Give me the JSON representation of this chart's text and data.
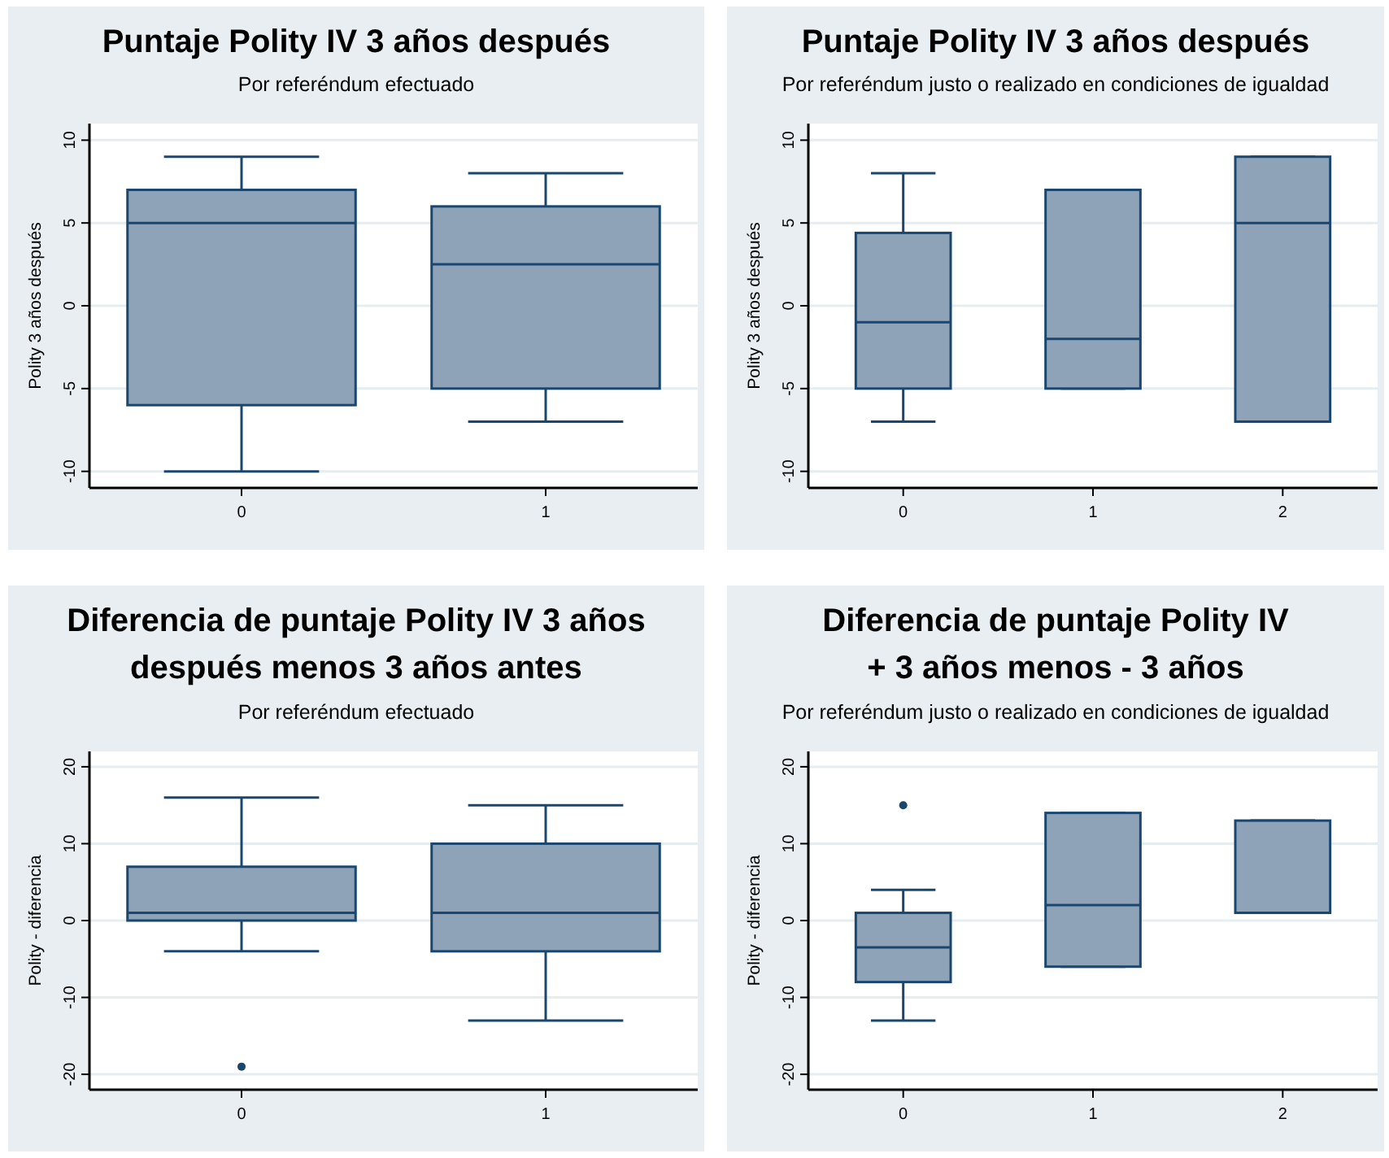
{
  "chart_data": [
    {
      "type": "box",
      "title": "Puntaje Polity IV 3 años después",
      "subtitle": "Por referéndum efectuado",
      "ylabel": "Polity 3 años después",
      "categories": [
        "0",
        "1"
      ],
      "ylim": [
        -11,
        11
      ],
      "yticks": [
        -10,
        -5,
        0,
        5,
        10
      ],
      "grid": "y",
      "series": [
        {
          "color": "#8ea3b8",
          "boxes": [
            {
              "low": -10,
              "q1": -6,
              "median": 5,
              "q3": 7,
              "high": 9
            },
            {
              "low": -7,
              "q1": -5,
              "median": 2.5,
              "q3": 6,
              "high": 8
            }
          ]
        }
      ]
    },
    {
      "type": "box",
      "title": "Puntaje Polity IV 3 años después",
      "subtitle": "Por referéndum justo o realizado en condiciones de igualdad",
      "ylabel": "Polity 3 años después",
      "categories": [
        "0",
        "1",
        "2"
      ],
      "ylim": [
        -11,
        11
      ],
      "yticks": [
        -10,
        -5,
        0,
        5,
        10
      ],
      "grid": "y",
      "series": [
        {
          "color": "#8ea3b8",
          "boxes": [
            {
              "low": -7,
              "q1": -5,
              "median": -1,
              "q3": 4.4,
              "high": 8
            },
            {
              "low": -5,
              "q1": -5,
              "median": -2,
              "q3": 7,
              "high": 7
            },
            {
              "low": -7,
              "q1": -7,
              "median": 5,
              "q3": 9,
              "high": 9
            }
          ]
        }
      ]
    },
    {
      "type": "box",
      "title": "Diferencia de puntaje Polity IV 3 años\ndespués menos 3 años antes",
      "subtitle": "Por referéndum efectuado",
      "ylabel": "Polity - diferencia",
      "categories": [
        "0",
        "1"
      ],
      "ylim": [
        -22,
        22
      ],
      "yticks": [
        -20,
        -10,
        0,
        10,
        20
      ],
      "grid": "y",
      "series": [
        {
          "color": "#8ea3b8",
          "boxes": [
            {
              "low": -4,
              "q1": 0,
              "median": 1,
              "q3": 7,
              "high": 16,
              "outliers": [
                -19
              ]
            },
            {
              "low": -13,
              "q1": -4,
              "median": 1,
              "q3": 10,
              "high": 15
            }
          ]
        }
      ]
    },
    {
      "type": "box",
      "title": "Diferencia de puntaje Polity IV\n+ 3 años menos - 3 años",
      "subtitle": "Por referéndum justo o realizado en condiciones de igualdad",
      "ylabel": "Polity - diferencia",
      "categories": [
        "0",
        "1",
        "2"
      ],
      "ylim": [
        -22,
        22
      ],
      "yticks": [
        -20,
        -10,
        0,
        10,
        20
      ],
      "grid": "y",
      "series": [
        {
          "color": "#8ea3b8",
          "boxes": [
            {
              "low": -13,
              "q1": -8,
              "median": -3.5,
              "q3": 1,
              "high": 4,
              "outliers": [
                15
              ]
            },
            {
              "low": -6,
              "q1": -6,
              "median": 2,
              "q3": 14,
              "high": 14
            },
            {
              "low": 1,
              "q1": 1,
              "median": 1,
              "q3": 13,
              "high": 13
            }
          ]
        }
      ]
    }
  ]
}
